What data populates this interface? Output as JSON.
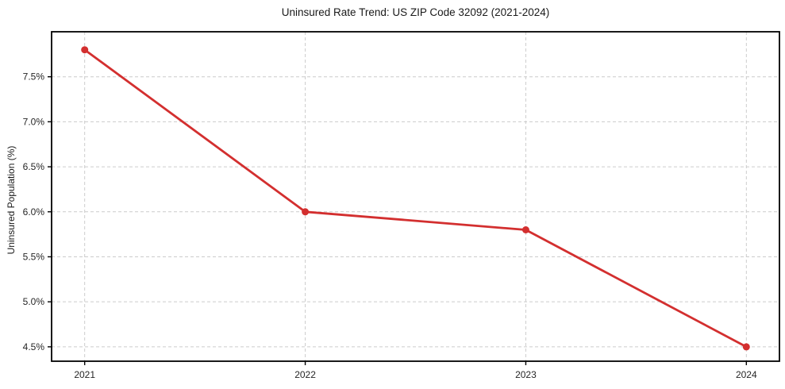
{
  "chart_data": {
    "type": "line",
    "title": "Uninsured Rate Trend: US ZIP Code 32092 (2021-2024)",
    "xlabel": "",
    "ylabel": "Uninsured Population (%)",
    "x": [
      2021,
      2022,
      2023,
      2024
    ],
    "x_tick_labels": [
      "2021",
      "2022",
      "2023",
      "2024"
    ],
    "series": [
      {
        "name": "uninsured-rate",
        "values": [
          7.8,
          6.0,
          5.8,
          4.5
        ],
        "color": "#d32f2f",
        "marker": "circle"
      }
    ],
    "y_ticks": [
      4.5,
      5.0,
      5.5,
      6.0,
      6.5,
      7.0,
      7.5
    ],
    "y_tick_labels": [
      "4.5%",
      "5.0%",
      "5.5%",
      "6.0%",
      "6.5%",
      "7.0%",
      "7.5%"
    ],
    "xlim": [
      2020.85,
      2024.15
    ],
    "ylim": [
      4.34,
      8.0
    ],
    "grid": true,
    "grid_style": "dashed",
    "legend": "none",
    "colors": {
      "line": "#d32f2f",
      "grid": "#cccccc",
      "spine": "#000000",
      "tick_label": "#262626",
      "title": "#1a1a1a",
      "background": "#ffffff"
    }
  }
}
